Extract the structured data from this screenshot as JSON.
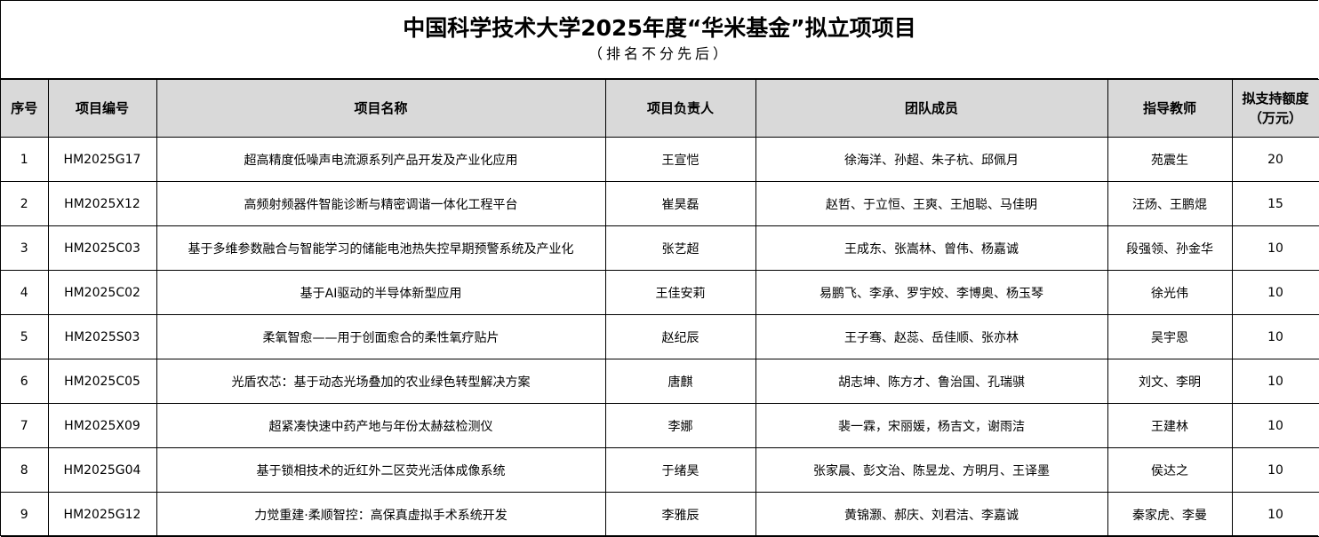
{
  "title": "中国科学技术大学2025年度“华米基金”拟立项项目",
  "subtitle": "（排名不分先后）",
  "headers": [
    "序号",
    "项目编号",
    "项目名称",
    "项目负责人",
    "团队成员",
    "指导教师",
    "拟支持额度（万元）"
  ],
  "header_colors": {
    "background": "#d9d9d9",
    "border": "#000000"
  },
  "rows": [
    [
      "1",
      "HM2025G17",
      "超高精度低噪声电流源系列产品开发及产业化应用",
      "王宣恺",
      "徐海洋、孙超、朱子杭、邱佩月",
      "苑震生",
      "20"
    ],
    [
      "2",
      "HM2025X12",
      "高频射频器件智能诊断与精密调谐一体化工程平台",
      "崔昊磊",
      "赵哲、于立恒、王爽、王旭聪、马佳明",
      "汪炀、王鹏焜",
      "15"
    ],
    [
      "3",
      "HM2025C03",
      "基于多维参数融合与智能学习的储能电池热失控早期预警系统及产业化",
      "张艺超",
      "王成东、张嵩林、曾伟、杨嘉诚",
      "段强领、孙金华",
      "10"
    ],
    [
      "4",
      "HM2025C02",
      "基于AI驱动的半导体新型应用",
      "王佳安莉",
      "易鹏飞、李承、罗宇姣、李博奥、杨玉琴",
      "徐光伟",
      "10"
    ],
    [
      "5",
      "HM2025S03",
      "柔氧智愈——用于创面愈合的柔性氧疗贴片",
      "赵纪辰",
      "王子骞、赵蕊、岳佳顺、张亦林",
      "吴宇恩",
      "10"
    ],
    [
      "6",
      "HM2025C05",
      "光盾农芯：基于动态光场叠加的农业绿色转型解决方案",
      "唐麒",
      "胡志坤、陈方才、鲁治国、孔瑞骐",
      "刘文、李明",
      "10"
    ],
    [
      "7",
      "HM2025X09",
      "超紧凑快速中药产地与年份太赫兹检测仪",
      "李娜",
      "裴一霖，宋丽媛，杨吉文，谢雨洁",
      "王建林",
      "10"
    ],
    [
      "8",
      "HM2025G04",
      "基于锁相技术的近红外二区荧光活体成像系统",
      "于绪昊",
      "张家晨、彭文治、陈昱龙、方明月、王译墨",
      "侯达之",
      "10"
    ],
    [
      "9",
      "HM2025G12",
      "力觉重建·柔顺智控：高保真虚拟手术系统开发",
      "李雅辰",
      "黄锦灏、郝庆、刘君洁、李嘉诚",
      "秦家虎、李曼",
      "10"
    ]
  ]
}
